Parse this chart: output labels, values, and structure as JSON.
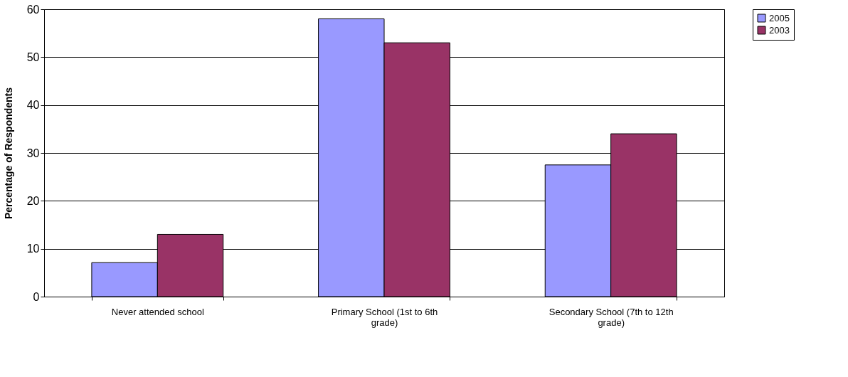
{
  "chart_data": {
    "type": "bar",
    "ylabel": "Percentage of Respondents",
    "categories": [
      "Never attended school",
      "Primary School (1st to 6th grade)",
      "Secondary School (7th to 12th grade)"
    ],
    "series": [
      {
        "name": "2005",
        "color": "#9999ff",
        "values": [
          7.1,
          58,
          27.5
        ]
      },
      {
        "name": "2003",
        "color": "#993366",
        "values": [
          13,
          53,
          34
        ]
      }
    ],
    "ylim": [
      0,
      60
    ],
    "yticks": [
      0,
      10,
      20,
      30,
      40,
      50,
      60
    ],
    "grid": "y",
    "legend": "right"
  }
}
